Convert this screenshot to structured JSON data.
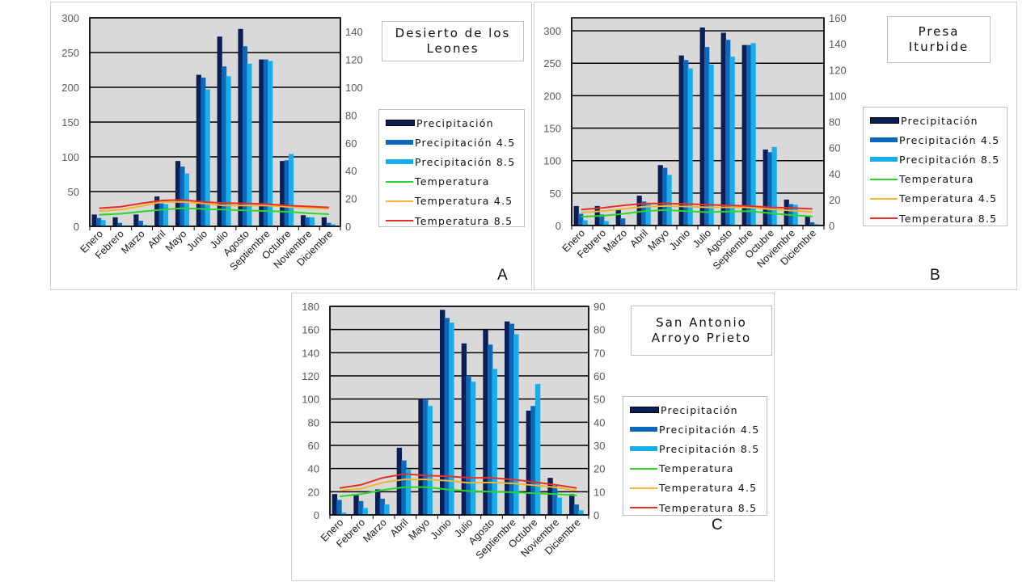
{
  "chart_data": [
    {
      "type": "bar",
      "title": "Desierto de los\nLeones",
      "panel_label": "A",
      "categories": [
        "Enero",
        "Febrero",
        "Marzo",
        "Abril",
        "Mayo",
        "Junio",
        "Julio",
        "Agosto",
        "Septiembre",
        "Octubre",
        "Noviembre",
        "Diciembre"
      ],
      "left_axis": {
        "ylim": [
          0,
          300
        ],
        "ticks": [
          0,
          50,
          100,
          150,
          200,
          250,
          300
        ]
      },
      "right_axis": {
        "ylim": [
          0,
          150
        ],
        "ticks": [
          0,
          20,
          40,
          60,
          80,
          100,
          120,
          140
        ]
      },
      "grid": true,
      "legend": "right",
      "series": [
        {
          "name": "Precipitación",
          "kind": "bar",
          "axis": "left",
          "color": "#0b1f55",
          "values": [
            17,
            13,
            17,
            43,
            94,
            218,
            273,
            284,
            240,
            94,
            16,
            13
          ]
        },
        {
          "name": "Precipitación  4.5",
          "kind": "bar",
          "axis": "left",
          "color": "#0c68ba",
          "values": [
            12,
            5,
            8,
            33,
            86,
            214,
            230,
            259,
            240,
            95,
            13,
            5
          ]
        },
        {
          "name": "Precipitación  8.5",
          "kind": "bar",
          "axis": "left",
          "color": "#19aeea",
          "values": [
            9,
            1,
            2,
            32,
            76,
            197,
            216,
            234,
            238,
            104,
            13,
            3
          ]
        },
        {
          "name": "Temperatura",
          "kind": "line",
          "axis": "right",
          "color": "#2ad82a",
          "values": [
            8.3,
            9,
            10.5,
            12,
            13,
            12.5,
            12,
            11.5,
            11,
            10.5,
            9.5,
            8.7
          ]
        },
        {
          "name": "Temperatura  4.5",
          "kind": "line",
          "axis": "right",
          "color": "#f2b630",
          "values": [
            11,
            12,
            14.5,
            17.5,
            17.5,
            16.5,
            15,
            15,
            15,
            14,
            13.2,
            12.6
          ]
        },
        {
          "name": "Temperatura  8.5",
          "kind": "line",
          "axis": "right",
          "color": "#e5302a",
          "values": [
            13,
            14,
            16.5,
            18.6,
            19,
            17.5,
            16.7,
            16.5,
            16,
            15,
            14.3,
            13.6
          ]
        }
      ]
    },
    {
      "type": "bar",
      "title": "Presa\nIturbide",
      "panel_label": "B",
      "categories": [
        "Enero",
        "Febrero",
        "Marzo",
        "Abril",
        "Mayo",
        "Junio",
        "Julio",
        "Agosto",
        "Septiembre",
        "Octubre",
        "Noviembre",
        "Diciembre"
      ],
      "left_axis": {
        "ylim": [
          0,
          320
        ],
        "ticks": [
          0,
          50,
          100,
          150,
          200,
          250,
          300
        ]
      },
      "right_axis": {
        "ylim": [
          0,
          160
        ],
        "ticks": [
          0,
          20,
          40,
          60,
          80,
          100,
          120,
          140,
          160
        ]
      },
      "grid": true,
      "legend": "right",
      "series": [
        {
          "name": "Precipitación",
          "kind": "bar",
          "axis": "left",
          "color": "#0b1f55",
          "values": [
            30,
            30,
            24,
            46,
            93,
            262,
            305,
            297,
            278,
            117,
            40,
            15
          ]
        },
        {
          "name": "Precipitación  4.5",
          "kind": "bar",
          "axis": "left",
          "color": "#0c68ba",
          "values": [
            18,
            17,
            11,
            37,
            89,
            255,
            275,
            286,
            278,
            113,
            33,
            5
          ]
        },
        {
          "name": "Precipitación  8.5",
          "kind": "bar",
          "axis": "left",
          "color": "#19aeea",
          "values": [
            8,
            7,
            1,
            33,
            78,
            242,
            248,
            260,
            281,
            121,
            32,
            2
          ]
        },
        {
          "name": "Temperatura",
          "kind": "line",
          "axis": "right",
          "color": "#2ad82a",
          "values": [
            6.8,
            7.5,
            9,
            11,
            12,
            11,
            10.3,
            10.8,
            11,
            9.5,
            8,
            7
          ]
        },
        {
          "name": "Temperatura  4.5",
          "kind": "line",
          "axis": "right",
          "color": "#f2b630",
          "values": [
            10,
            11,
            12.8,
            14.5,
            15,
            14.6,
            14,
            14,
            14,
            12.5,
            11.5,
            10.5
          ]
        },
        {
          "name": "Temperatura  8.5",
          "kind": "line",
          "axis": "right",
          "color": "#e5302a",
          "values": [
            12.3,
            13.5,
            15.5,
            17,
            17,
            16.7,
            16,
            15.5,
            15,
            14,
            13.5,
            12.8
          ]
        }
      ]
    },
    {
      "type": "bar",
      "title": "San Antonio\nArroyo Prieto",
      "panel_label": "C",
      "categories": [
        "Enero",
        "Febrero",
        "Marzo",
        "Abril",
        "Mayo",
        "Junio",
        "Julio",
        "Agosto",
        "Septiembre",
        "Octubre",
        "Noviembre",
        "Diciembre"
      ],
      "left_axis": {
        "ylim": [
          0,
          180
        ],
        "ticks": [
          0,
          20,
          40,
          60,
          80,
          100,
          120,
          140,
          160,
          180
        ]
      },
      "right_axis": {
        "ylim": [
          0,
          90
        ],
        "ticks": [
          0,
          10,
          20,
          30,
          40,
          50,
          60,
          70,
          80,
          90
        ]
      },
      "grid": true,
      "legend": "right",
      "series": [
        {
          "name": "Precipitación",
          "kind": "bar",
          "axis": "left",
          "color": "#0b1f55",
          "values": [
            18,
            17,
            22,
            58,
            100,
            177,
            148,
            160,
            167,
            90,
            32,
            18
          ]
        },
        {
          "name": "Precipitación  4.5",
          "kind": "bar",
          "axis": "left",
          "color": "#0c68ba",
          "values": [
            13,
            12,
            14,
            47,
            100,
            170,
            120,
            147,
            165,
            94,
            25,
            9
          ]
        },
        {
          "name": "Precipitación  8.5",
          "kind": "bar",
          "axis": "left",
          "color": "#19aeea",
          "values": [
            2,
            6,
            9,
            39,
            94,
            166,
            115,
            126,
            156,
            113,
            15,
            4
          ]
        },
        {
          "name": "Temperatura",
          "kind": "line",
          "axis": "right",
          "color": "#2ad82a",
          "values": [
            8,
            9,
            10.7,
            12,
            12,
            11,
            10.3,
            10,
            9.8,
            9.3,
            9,
            8.4
          ]
        },
        {
          "name": "Temperatura  4.5",
          "kind": "line",
          "axis": "right",
          "color": "#f2b630",
          "values": [
            10.5,
            11.3,
            14,
            15.3,
            15.3,
            14.8,
            13.8,
            14,
            13.6,
            12.8,
            11.9,
            10.5
          ]
        },
        {
          "name": "Temperatura  8.5",
          "kind": "line",
          "axis": "right",
          "color": "#e5302a",
          "values": [
            11.6,
            13,
            16,
            17.7,
            17,
            16.7,
            16,
            16,
            15.3,
            14.2,
            13,
            11.6
          ]
        }
      ]
    }
  ]
}
